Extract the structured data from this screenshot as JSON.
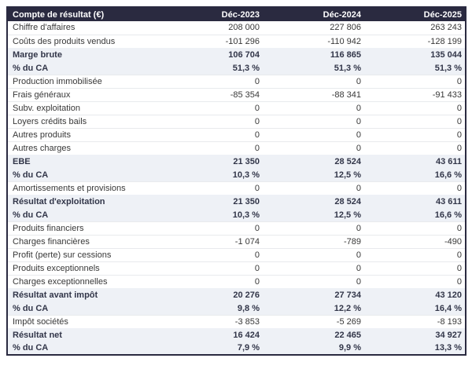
{
  "table": {
    "header": {
      "label": "Compte de résultat (€)",
      "columns": [
        "Déc-2023",
        "Déc-2024",
        "Déc-2025"
      ]
    },
    "rows": [
      {
        "label": "Chiffre d'affaires",
        "values": [
          "208 000",
          "227 806",
          "263 243"
        ],
        "emphasis": false
      },
      {
        "label": "Coûts des produits vendus",
        "values": [
          "-101 296",
          "-110 942",
          "-128 199"
        ],
        "emphasis": false
      },
      {
        "label": "Marge brute",
        "values": [
          "106 704",
          "116 865",
          "135 044"
        ],
        "emphasis": true
      },
      {
        "label": "% du CA",
        "values": [
          "51,3 %",
          "51,3 %",
          "51,3 %"
        ],
        "emphasis": true
      },
      {
        "label": "Production immobilisée",
        "values": [
          "0",
          "0",
          "0"
        ],
        "emphasis": false
      },
      {
        "label": "Frais généraux",
        "values": [
          "-85 354",
          "-88 341",
          "-91 433"
        ],
        "emphasis": false
      },
      {
        "label": "Subv. exploitation",
        "values": [
          "0",
          "0",
          "0"
        ],
        "emphasis": false
      },
      {
        "label": "Loyers crédits bails",
        "values": [
          "0",
          "0",
          "0"
        ],
        "emphasis": false
      },
      {
        "label": "Autres produits",
        "values": [
          "0",
          "0",
          "0"
        ],
        "emphasis": false
      },
      {
        "label": "Autres charges",
        "values": [
          "0",
          "0",
          "0"
        ],
        "emphasis": false
      },
      {
        "label": "EBE",
        "values": [
          "21 350",
          "28 524",
          "43 611"
        ],
        "emphasis": true
      },
      {
        "label": "% du CA",
        "values": [
          "10,3 %",
          "12,5 %",
          "16,6 %"
        ],
        "emphasis": true
      },
      {
        "label": "Amortissements et provisions",
        "values": [
          "0",
          "0",
          "0"
        ],
        "emphasis": false
      },
      {
        "label": "Résultat d'exploitation",
        "values": [
          "21 350",
          "28 524",
          "43 611"
        ],
        "emphasis": true
      },
      {
        "label": "% du CA",
        "values": [
          "10,3 %",
          "12,5 %",
          "16,6 %"
        ],
        "emphasis": true
      },
      {
        "label": "Produits financiers",
        "values": [
          "0",
          "0",
          "0"
        ],
        "emphasis": false
      },
      {
        "label": "Charges financières",
        "values": [
          "-1 074",
          "-789",
          "-490"
        ],
        "emphasis": false
      },
      {
        "label": "Profit (perte) sur cessions",
        "values": [
          "0",
          "0",
          "0"
        ],
        "emphasis": false
      },
      {
        "label": "Produits exceptionnels",
        "values": [
          "0",
          "0",
          "0"
        ],
        "emphasis": false
      },
      {
        "label": "Charges exceptionnelles",
        "values": [
          "0",
          "0",
          "0"
        ],
        "emphasis": false
      },
      {
        "label": "Résultat avant impôt",
        "values": [
          "20 276",
          "27 734",
          "43 120"
        ],
        "emphasis": true
      },
      {
        "label": "% du CA",
        "values": [
          "9,8 %",
          "12,2 %",
          "16,4 %"
        ],
        "emphasis": true
      },
      {
        "label": "Impôt sociétés",
        "values": [
          "-3 853",
          "-5 269",
          "-8 193"
        ],
        "emphasis": false
      },
      {
        "label": "Résultat net",
        "values": [
          "16 424",
          "22 465",
          "34 927"
        ],
        "emphasis": true
      },
      {
        "label": "% du CA",
        "values": [
          "7,9 %",
          "9,9 %",
          "13,3 %"
        ],
        "emphasis": true
      }
    ]
  },
  "colors": {
    "header_bg": "#2a2a40",
    "header_text": "#ffffff",
    "emphasis_row_bg": "#eef1f6",
    "emphasis_text": "#323649",
    "body_text": "#383838",
    "row_divider": "#e8eaed",
    "outer_border": "#2a2a40"
  },
  "chart_data": {
    "type": "table",
    "title": "Compte de résultat (€)",
    "columns": [
      "Déc-2023",
      "Déc-2024",
      "Déc-2025"
    ],
    "rows": [
      {
        "label": "Chiffre d'affaires",
        "unit": "€",
        "values": [
          208000,
          227806,
          263243
        ]
      },
      {
        "label": "Coûts des produits vendus",
        "unit": "€",
        "values": [
          -101296,
          -110942,
          -128199
        ]
      },
      {
        "label": "Marge brute",
        "unit": "€",
        "values": [
          106704,
          116865,
          135044
        ]
      },
      {
        "label": "% du CA",
        "unit": "%",
        "values": [
          51.3,
          51.3,
          51.3
        ]
      },
      {
        "label": "Production immobilisée",
        "unit": "€",
        "values": [
          0,
          0,
          0
        ]
      },
      {
        "label": "Frais généraux",
        "unit": "€",
        "values": [
          -85354,
          -88341,
          -91433
        ]
      },
      {
        "label": "Subv. exploitation",
        "unit": "€",
        "values": [
          0,
          0,
          0
        ]
      },
      {
        "label": "Loyers crédits bails",
        "unit": "€",
        "values": [
          0,
          0,
          0
        ]
      },
      {
        "label": "Autres produits",
        "unit": "€",
        "values": [
          0,
          0,
          0
        ]
      },
      {
        "label": "Autres charges",
        "unit": "€",
        "values": [
          0,
          0,
          0
        ]
      },
      {
        "label": "EBE",
        "unit": "€",
        "values": [
          21350,
          28524,
          43611
        ]
      },
      {
        "label": "% du CA",
        "unit": "%",
        "values": [
          10.3,
          12.5,
          16.6
        ]
      },
      {
        "label": "Amortissements et provisions",
        "unit": "€",
        "values": [
          0,
          0,
          0
        ]
      },
      {
        "label": "Résultat d'exploitation",
        "unit": "€",
        "values": [
          21350,
          28524,
          43611
        ]
      },
      {
        "label": "% du CA",
        "unit": "%",
        "values": [
          10.3,
          12.5,
          16.6
        ]
      },
      {
        "label": "Produits financiers",
        "unit": "€",
        "values": [
          0,
          0,
          0
        ]
      },
      {
        "label": "Charges financières",
        "unit": "€",
        "values": [
          -1074,
          -789,
          -490
        ]
      },
      {
        "label": "Profit (perte) sur cessions",
        "unit": "€",
        "values": [
          0,
          0,
          0
        ]
      },
      {
        "label": "Produits exceptionnels",
        "unit": "€",
        "values": [
          0,
          0,
          0
        ]
      },
      {
        "label": "Charges exceptionnelles",
        "unit": "€",
        "values": [
          0,
          0,
          0
        ]
      },
      {
        "label": "Résultat avant impôt",
        "unit": "€",
        "values": [
          20276,
          27734,
          43120
        ]
      },
      {
        "label": "% du CA",
        "unit": "%",
        "values": [
          9.8,
          12.2,
          16.4
        ]
      },
      {
        "label": "Impôt sociétés",
        "unit": "€",
        "values": [
          -3853,
          -5269,
          -8193
        ]
      },
      {
        "label": "Résultat net",
        "unit": "€",
        "values": [
          16424,
          22465,
          34927
        ]
      },
      {
        "label": "% du CA",
        "unit": "%",
        "values": [
          7.9,
          9.9,
          13.3
        ]
      }
    ]
  }
}
